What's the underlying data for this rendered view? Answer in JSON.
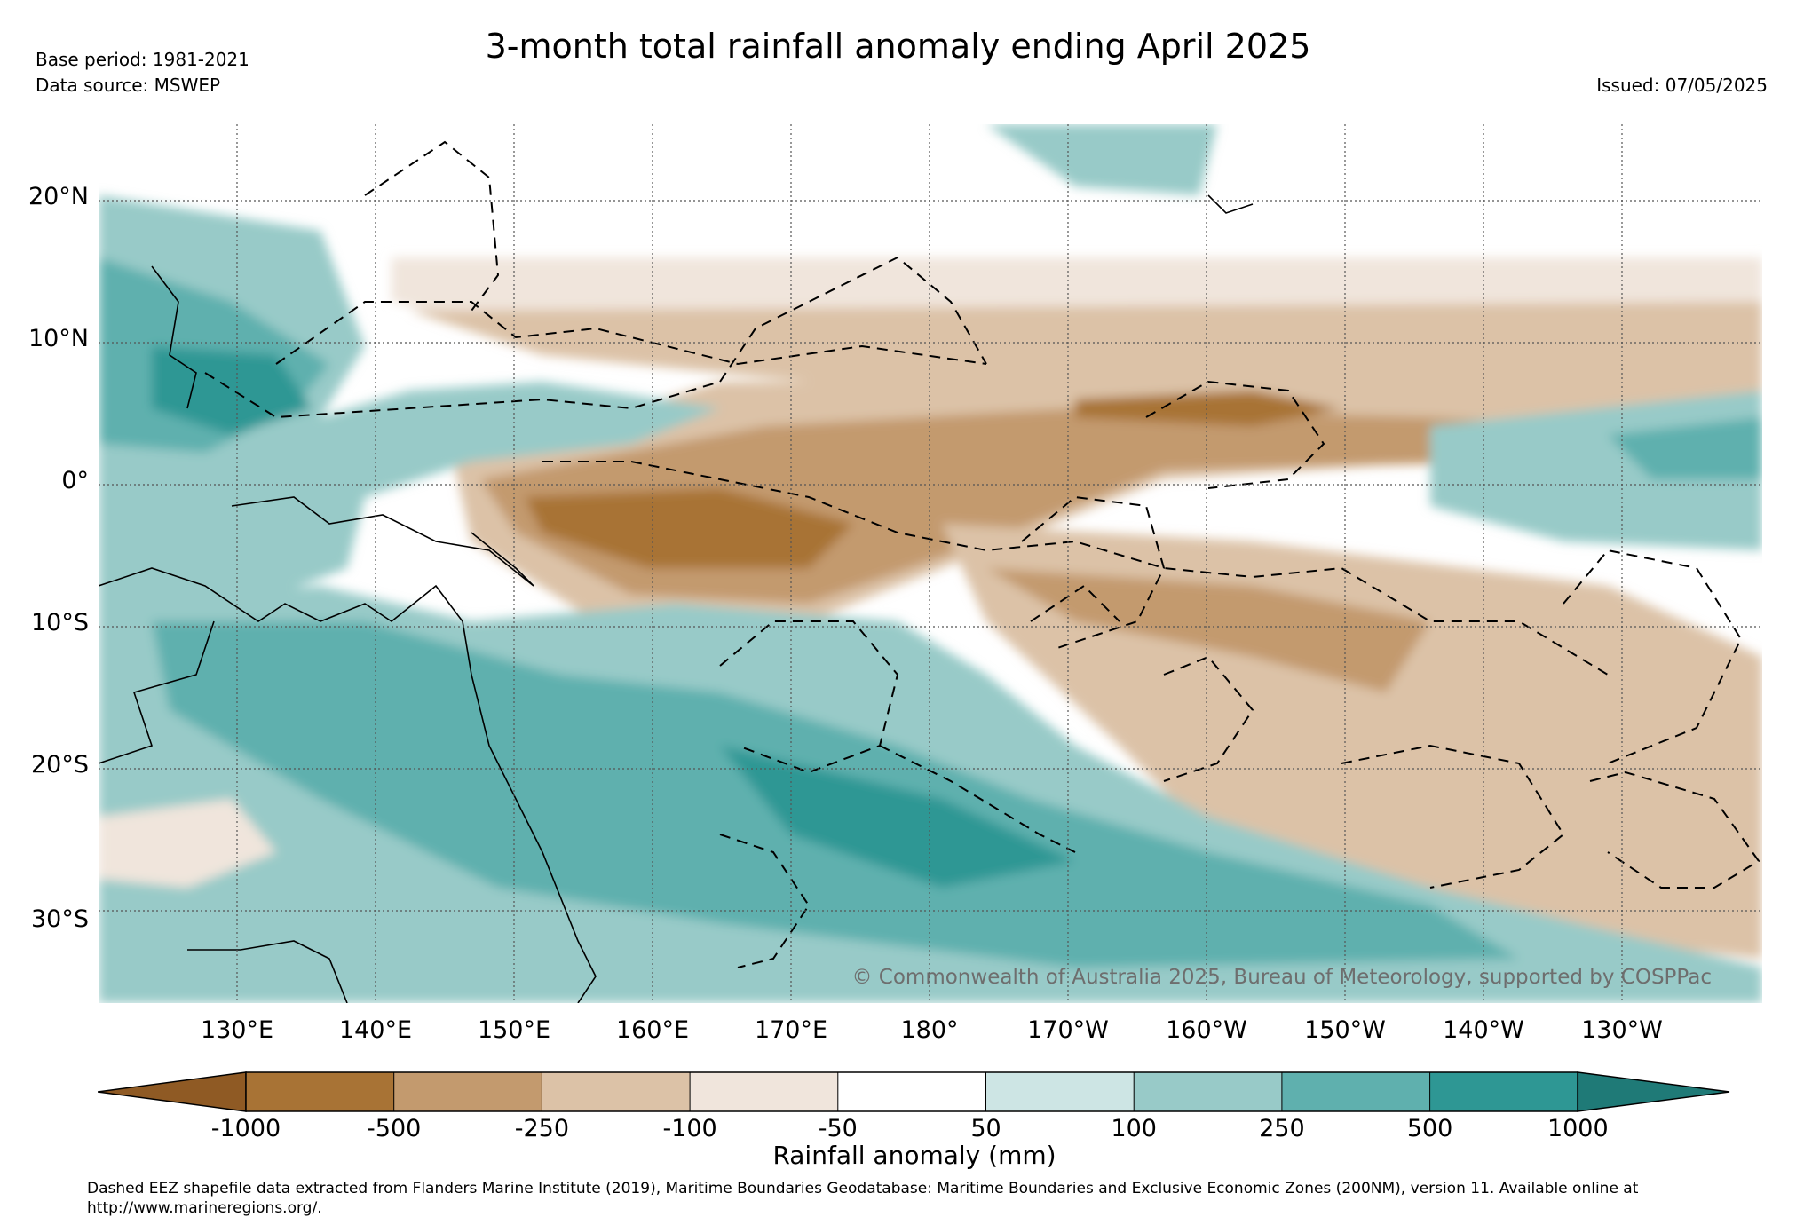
{
  "header": {
    "title": "3-month total rainfall anomaly ending April 2025",
    "base_period": "Base period: 1981-2021",
    "data_source": "Data source: MSWEP",
    "issued": "Issued: 07/05/2025"
  },
  "map": {
    "latitude_labels": [
      "20°N",
      "10°N",
      "0°",
      "10°S",
      "20°S",
      "30°S"
    ],
    "longitude_labels": [
      "130°E",
      "140°E",
      "150°E",
      "160°E",
      "170°E",
      "180°",
      "170°W",
      "160°W",
      "150°W",
      "140°W",
      "130°W"
    ],
    "copyright": "© Commonwealth of Australia 2025, Bureau of Meteorology, supported by COSPPac"
  },
  "colorbar": {
    "title": "Rainfall anomaly (mm)",
    "tick_labels": [
      "-1000",
      "-500",
      "-250",
      "-100",
      "-50",
      "50",
      "100",
      "250",
      "500",
      "1000"
    ],
    "colors": [
      "#8f5a24",
      "#a87335",
      "#c39a6e",
      "#dcc2a7",
      "#f0e5dc",
      "#ffffff",
      "#cde5e4",
      "#98cac8",
      "#5fb0ae",
      "#2e9794",
      "#1f7a77"
    ]
  },
  "footnote": "Dashed EEZ shapefile data extracted from Flanders Marine Institute (2019), Maritime Boundaries Geodatabase: Maritime Boundaries and Exclusive Economic Zones (200NM), version 11. Available online at http://www.marineregions.org/."
}
